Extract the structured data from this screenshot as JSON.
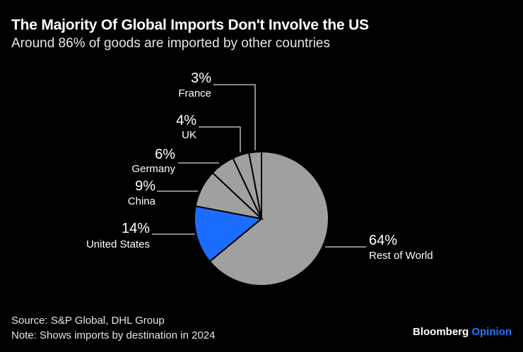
{
  "header": {
    "title": "The Majority Of Global Imports Don't Involve the US",
    "subtitle": "Around 86% of goods are imported by other countries"
  },
  "chart_data": {
    "type": "pie",
    "start": "12 o'clock, clockwise",
    "slices": [
      {
        "label": "Rest of World",
        "value": 64,
        "pct_label": "64%",
        "color": "#a0a0a0"
      },
      {
        "label": "United States",
        "value": 14,
        "pct_label": "14%",
        "color": "#1a6dff"
      },
      {
        "label": "China",
        "value": 9,
        "pct_label": "9%",
        "color": "#a0a0a0"
      },
      {
        "label": "Germany",
        "value": 6,
        "pct_label": "6%",
        "color": "#a0a0a0"
      },
      {
        "label": "UK",
        "value": 4,
        "pct_label": "4%",
        "color": "#a0a0a0"
      },
      {
        "label": "France",
        "value": 3,
        "pct_label": "3%",
        "color": "#a0a0a0"
      }
    ]
  },
  "footer": {
    "source": "Source: S&P Global, DHL Group",
    "note": "Note: Shows imports by destination in 2024",
    "brand": "Bloomberg",
    "brand_accent": "Opinion"
  }
}
